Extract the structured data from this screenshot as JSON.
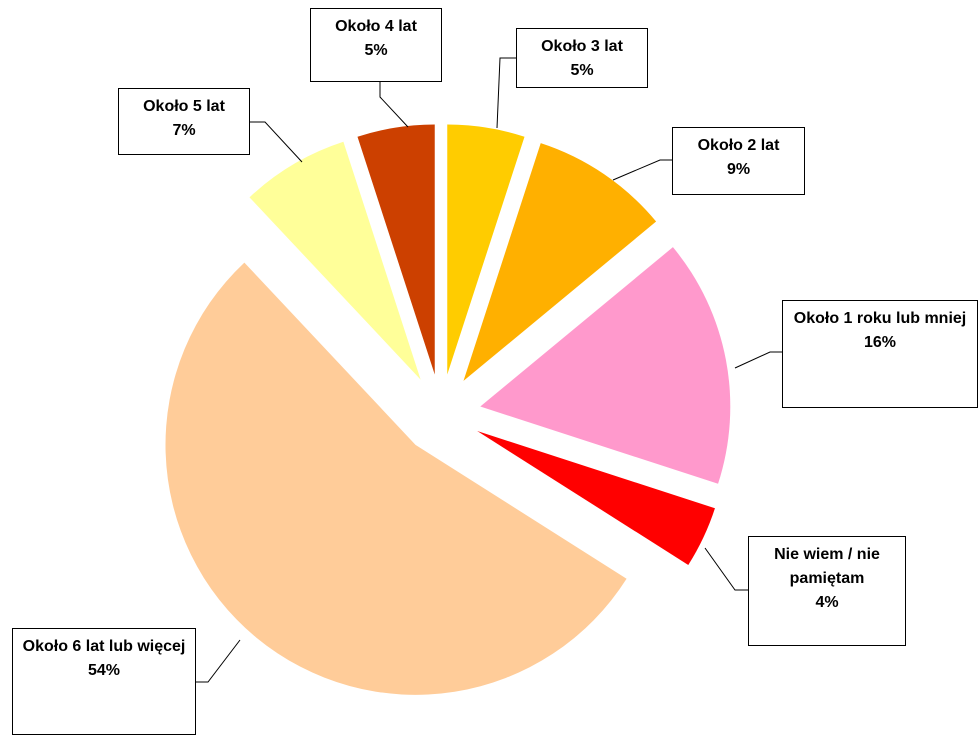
{
  "chart_data": {
    "type": "pie",
    "categories": [
      "Około 3 lat",
      "Około 2 lat",
      "Około 1 roku lub mniej",
      "Nie wiem / nie pamiętam",
      "Około 6 lat lub więcej",
      "Około 5 lat",
      "Około 4 lat"
    ],
    "values": [
      5,
      9,
      16,
      4,
      54,
      7,
      5
    ],
    "value_labels": [
      "5%",
      "9%",
      "16%",
      "4%",
      "54%",
      "7%",
      "5%"
    ],
    "colors": [
      "#ffcc00",
      "#ffb000",
      "#ff99cc",
      "#ff0000",
      "#ffcc99",
      "#ffff99",
      "#cc4000"
    ]
  }
}
